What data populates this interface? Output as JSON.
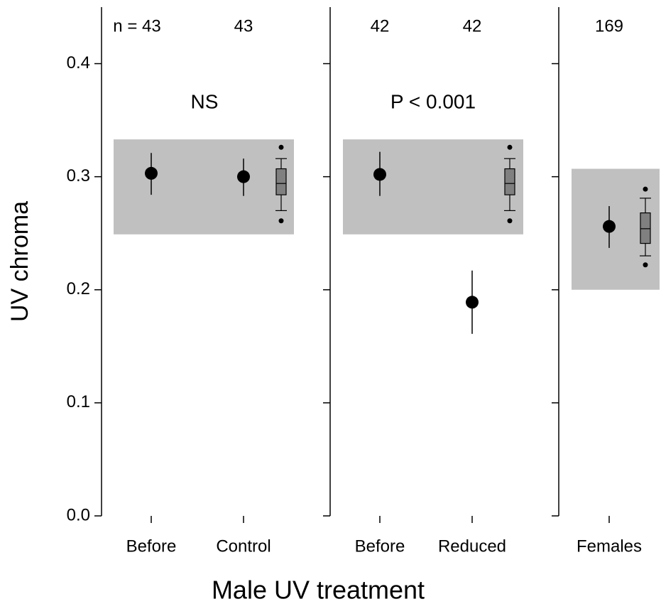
{
  "chart_data": {
    "type": "errorbar",
    "ylabel": "UV chroma",
    "xlabel": "Male UV treatment",
    "ylim": [
      0,
      0.45
    ],
    "yticks": [
      {
        "value": 0,
        "label": "0.0"
      },
      0.1,
      0.2,
      0.3,
      0.4
    ],
    "point_color": "#000000",
    "band_color": "#c0c0c0",
    "box_color": "#808080",
    "panels": [
      {
        "categories": [
          "Before",
          "Control"
        ],
        "n_labels": [
          "n = 43",
          "43"
        ],
        "annotation": "NS",
        "values": [
          0.303,
          0.3
        ],
        "lower": [
          0.284,
          0.283
        ],
        "upper": [
          0.321,
          0.316
        ],
        "band": [
          0.249,
          0.333
        ],
        "box": {
          "whislo": 0.27,
          "q1": 0.284,
          "med": 0.294,
          "q3": 0.307,
          "whishi": 0.316,
          "fliers": [
            0.261,
            0.326
          ]
        }
      },
      {
        "categories": [
          "Before",
          "Reduced"
        ],
        "n_labels": [
          "42",
          "42"
        ],
        "annotation": "P < 0.001",
        "values": [
          0.302,
          0.189
        ],
        "lower": [
          0.283,
          0.161
        ],
        "upper": [
          0.322,
          0.217
        ],
        "band": [
          0.249,
          0.333
        ],
        "box": {
          "whislo": 0.27,
          "q1": 0.284,
          "med": 0.294,
          "q3": 0.307,
          "whishi": 0.316,
          "fliers": [
            0.261,
            0.326
          ]
        }
      },
      {
        "categories": [
          "Females"
        ],
        "n_labels": [
          "169"
        ],
        "values": [
          0.256
        ],
        "lower": [
          0.237
        ],
        "upper": [
          0.274
        ],
        "band": [
          0.2,
          0.307
        ],
        "box": {
          "whislo": 0.23,
          "q1": 0.241,
          "med": 0.254,
          "q3": 0.268,
          "whishi": 0.281,
          "fliers": [
            0.222,
            0.289
          ]
        }
      }
    ]
  }
}
